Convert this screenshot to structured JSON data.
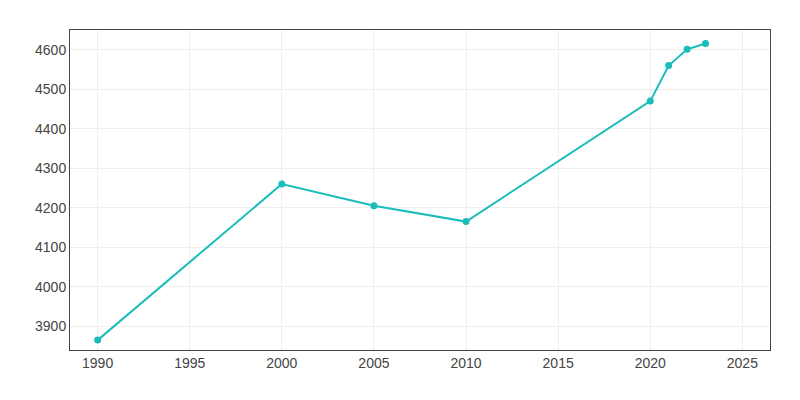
{
  "chart_data": {
    "type": "line",
    "x": [
      1990,
      2000,
      2005,
      2010,
      2020,
      2021,
      2022,
      2023
    ],
    "values": [
      3865,
      4260,
      4205,
      4165,
      4470,
      4560,
      4601,
      4616
    ],
    "color": "#1abcbc",
    "marker": "circle",
    "xlim": [
      1988.5,
      2026.5
    ],
    "ylim": [
      3840,
      4650
    ],
    "xticks": [
      1990,
      1995,
      2000,
      2005,
      2010,
      2015,
      2020,
      2025
    ],
    "yticks": [
      3900,
      4000,
      4100,
      4200,
      4300,
      4400,
      4500,
      4600
    ],
    "grid": true
  }
}
